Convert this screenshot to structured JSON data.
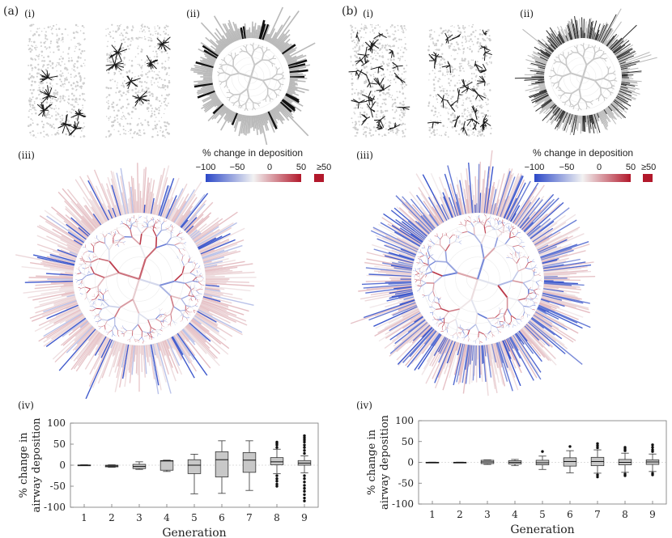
{
  "panels": [
    {
      "label": "(a)",
      "sub_i": "(i)",
      "sub_ii": "(ii)",
      "sub_iii": "(iii)",
      "sub_iv": "(iv)",
      "colorbar": {
        "title": "% change in deposition",
        "ticks": [
          "−100",
          "−50",
          "0",
          "50"
        ],
        "overflow": "≥50"
      }
    },
    {
      "label": "(b)",
      "sub_i": "(i)",
      "sub_ii": "(ii)",
      "sub_iii": "(iii)",
      "sub_iv": "(iv)",
      "colorbar": {
        "title": "% change in deposition",
        "ticks": [
          "−100",
          "−50",
          "0",
          "50"
        ],
        "overflow": "≥50"
      }
    }
  ],
  "colors": {
    "negative": "#2b48c8",
    "neutral": "#f2f2f2",
    "positive": "#b2182b",
    "box_fill": "#c8c8c8",
    "tree_gray": "#b9b9b9",
    "tree_dark": "#111111"
  },
  "chart_data": [
    {
      "type": "box",
      "xlabel": "Generation",
      "ylabel_line1": "% change in",
      "ylabel_line2": "airway deposition",
      "ylim": [
        -100,
        100
      ],
      "yticks": [
        -100,
        -50,
        0,
        50,
        100
      ],
      "categories": [
        "1",
        "2",
        "3",
        "4",
        "5",
        "6",
        "7",
        "8",
        "9"
      ],
      "boxes": [
        {
          "gen": 1,
          "min": -1,
          "q1": -0.5,
          "median": 0,
          "q3": 0.5,
          "max": 1,
          "outliers": []
        },
        {
          "gen": 2,
          "min": -5,
          "q1": -4,
          "median": -2,
          "q3": 0,
          "max": 1,
          "outliers": []
        },
        {
          "gen": 3,
          "min": -10,
          "q1": -8,
          "median": -3,
          "q3": 2,
          "max": 8,
          "outliers": []
        },
        {
          "gen": 4,
          "min": -15,
          "q1": -12,
          "median": 10,
          "q3": 11,
          "max": 12,
          "outliers": []
        },
        {
          "gen": 5,
          "min": -68,
          "q1": -20,
          "median": 0,
          "q3": 13,
          "max": 26,
          "outliers": []
        },
        {
          "gen": 6,
          "min": -67,
          "q1": -28,
          "median": 13,
          "q3": 32,
          "max": 58,
          "outliers": []
        },
        {
          "gen": 7,
          "min": -60,
          "q1": -17,
          "median": 12,
          "q3": 30,
          "max": 58,
          "outliers": []
        },
        {
          "gen": 8,
          "min": -20,
          "q1": 1,
          "median": 8,
          "q3": 18,
          "max": 38,
          "outliers": [
            42,
            48,
            52,
            55,
            -25,
            -32,
            -38,
            -45,
            -50
          ]
        },
        {
          "gen": 9,
          "min": -18,
          "q1": 0,
          "median": 5,
          "q3": 11,
          "max": 22,
          "outliers": [
            28,
            35,
            42,
            48,
            55,
            60,
            65,
            70,
            -25,
            -32,
            -40,
            -48,
            -55,
            -62,
            -70,
            -78,
            -85
          ]
        }
      ]
    },
    {
      "type": "box",
      "xlabel": "Generation",
      "ylabel_line1": "% change in",
      "ylabel_line2": "airway deposition",
      "ylim": [
        -100,
        100
      ],
      "yticks": [
        -100,
        -50,
        0,
        50,
        100
      ],
      "categories": [
        "1",
        "2",
        "3",
        "4",
        "5",
        "6",
        "7",
        "8",
        "9"
      ],
      "boxes": [
        {
          "gen": 1,
          "min": -0.5,
          "q1": -0.3,
          "median": 0,
          "q3": 0.3,
          "max": 0.5,
          "outliers": []
        },
        {
          "gen": 2,
          "min": -0.5,
          "q1": -0.3,
          "median": 0,
          "q3": 0.3,
          "max": 0.5,
          "outliers": []
        },
        {
          "gen": 3,
          "min": -5,
          "q1": -3,
          "median": 1,
          "q3": 5,
          "max": 6,
          "outliers": []
        },
        {
          "gen": 4,
          "min": -8,
          "q1": -4,
          "median": 0,
          "q3": 4,
          "max": 7,
          "outliers": []
        },
        {
          "gen": 5,
          "min": -17,
          "q1": -6,
          "median": -1,
          "q3": 5,
          "max": 15,
          "outliers": [
            26
          ]
        },
        {
          "gen": 6,
          "min": -25,
          "q1": -9,
          "median": 2,
          "q3": 11,
          "max": 28,
          "outliers": [
            38
          ]
        },
        {
          "gen": 7,
          "min": -26,
          "q1": -8,
          "median": 2,
          "q3": 12,
          "max": 30,
          "outliers": [
            35,
            40,
            45,
            -30,
            -35
          ]
        },
        {
          "gen": 8,
          "min": -24,
          "q1": -6,
          "median": 0,
          "q3": 7,
          "max": 22,
          "outliers": [
            28,
            32,
            36,
            -28,
            -32
          ]
        },
        {
          "gen": 9,
          "min": -22,
          "q1": -5,
          "median": 1,
          "q3": 6,
          "max": 20,
          "outliers": [
            26,
            30,
            36,
            42,
            -26,
            -30
          ]
        }
      ]
    }
  ]
}
